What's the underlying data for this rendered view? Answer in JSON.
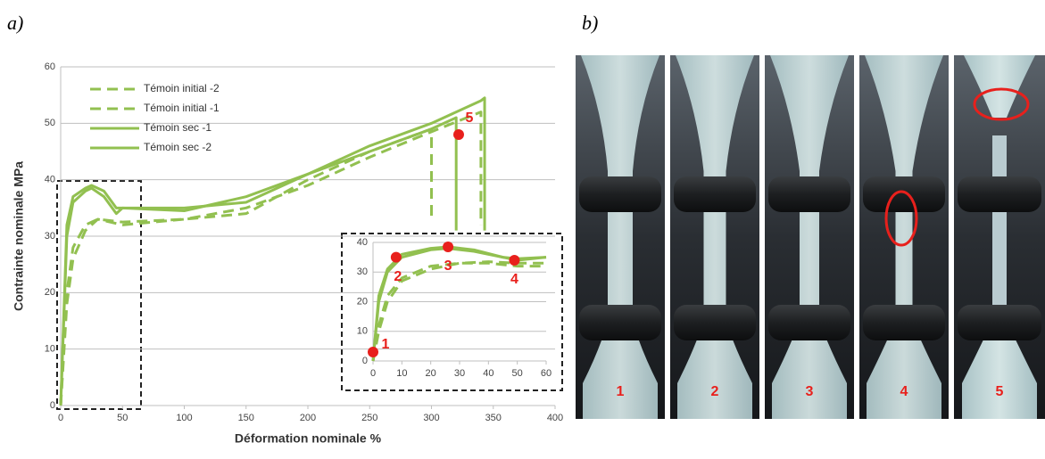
{
  "panels": {
    "a": "a)",
    "b": "b)"
  },
  "photos": {
    "labels": [
      "1",
      "2",
      "3",
      "4",
      "5"
    ]
  },
  "chart_data": [
    {
      "type": "line",
      "x_label": "Déformation nominale %",
      "y_label": "Contrainte nominale MPa",
      "xlim": [
        0,
        400
      ],
      "xticks": [
        0,
        50,
        100,
        150,
        200,
        250,
        300,
        350,
        400
      ],
      "ylim": [
        0,
        60
      ],
      "yticks": [
        0,
        10,
        20,
        30,
        40,
        50,
        60
      ],
      "grid": true,
      "legend": "upper left",
      "series": [
        {
          "name": "Témoin initial -2",
          "color": "#92c050",
          "dash": true,
          "x": [
            0,
            5,
            10,
            20,
            30,
            50,
            100,
            150,
            200,
            250,
            300,
            300
          ],
          "values": [
            0,
            20,
            28,
            32,
            33,
            32.5,
            33,
            34,
            40,
            45,
            49,
            33
          ]
        },
        {
          "name": "Témoin initial -1",
          "color": "#92c050",
          "dash": true,
          "x": [
            0,
            5,
            10,
            20,
            30,
            50,
            100,
            150,
            200,
            250,
            300,
            340,
            340
          ],
          "values": [
            0,
            18,
            26,
            31,
            33,
            32,
            33,
            35,
            39,
            44,
            48.5,
            52,
            32
          ]
        },
        {
          "name": "Témoin sec -1",
          "color": "#92c050",
          "dash": false,
          "x": [
            0,
            5,
            10,
            20,
            25,
            35,
            45,
            50,
            100,
            150,
            200,
            250,
            300,
            320,
            320
          ],
          "values": [
            0,
            30,
            36,
            38,
            38.5,
            37,
            34,
            35,
            35,
            36,
            41,
            45,
            49,
            51,
            31
          ]
        },
        {
          "name": "Témoin sec -2",
          "color": "#92c050",
          "dash": false,
          "x": [
            0,
            5,
            10,
            20,
            25,
            35,
            45,
            50,
            100,
            150,
            200,
            250,
            300,
            340,
            343,
            343
          ],
          "values": [
            0,
            32,
            37,
            38.5,
            39,
            38,
            35,
            35,
            34.5,
            37,
            41,
            46,
            50,
            54,
            54.5,
            31
          ]
        }
      ],
      "points": {
        "x": [
          322
        ],
        "y": [
          48
        ],
        "labels": [
          "5"
        ],
        "color": "#e8201c"
      }
    },
    {
      "type": "line",
      "xlim": [
        0,
        60
      ],
      "xticks": [
        0,
        10,
        20,
        30,
        40,
        50,
        60
      ],
      "ylim": [
        0,
        40
      ],
      "yticks": [
        0,
        10,
        20,
        30,
        40
      ],
      "grid": true,
      "series": [
        {
          "color": "#92c050",
          "dash": true,
          "x": [
            0,
            2,
            5,
            10,
            20,
            30,
            40,
            50,
            60
          ],
          "values": [
            0,
            12,
            22,
            28,
            32,
            33,
            33,
            32,
            32
          ]
        },
        {
          "color": "#92c050",
          "dash": true,
          "x": [
            0,
            2,
            5,
            10,
            20,
            30,
            40,
            50,
            60
          ],
          "values": [
            0,
            10,
            20,
            27,
            31,
            33,
            33.5,
            33,
            33
          ]
        },
        {
          "color": "#92c050",
          "dash": false,
          "x": [
            0,
            2,
            5,
            10,
            20,
            26,
            35,
            45,
            50,
            60
          ],
          "values": [
            0,
            20,
            30,
            35,
            37.5,
            38,
            37,
            35,
            34,
            35
          ]
        },
        {
          "color": "#92c050",
          "dash": false,
          "x": [
            0,
            2,
            5,
            10,
            20,
            26,
            35,
            45,
            50,
            60
          ],
          "values": [
            0,
            22,
            31,
            36,
            38,
            38.5,
            37.5,
            35,
            34.5,
            35
          ]
        }
      ],
      "points": {
        "x": [
          0,
          8,
          26,
          49
        ],
        "y": [
          3,
          35,
          38.5,
          34
        ],
        "labels": [
          "1",
          "2",
          "3",
          "4"
        ],
        "color": "#e8201c"
      }
    }
  ]
}
